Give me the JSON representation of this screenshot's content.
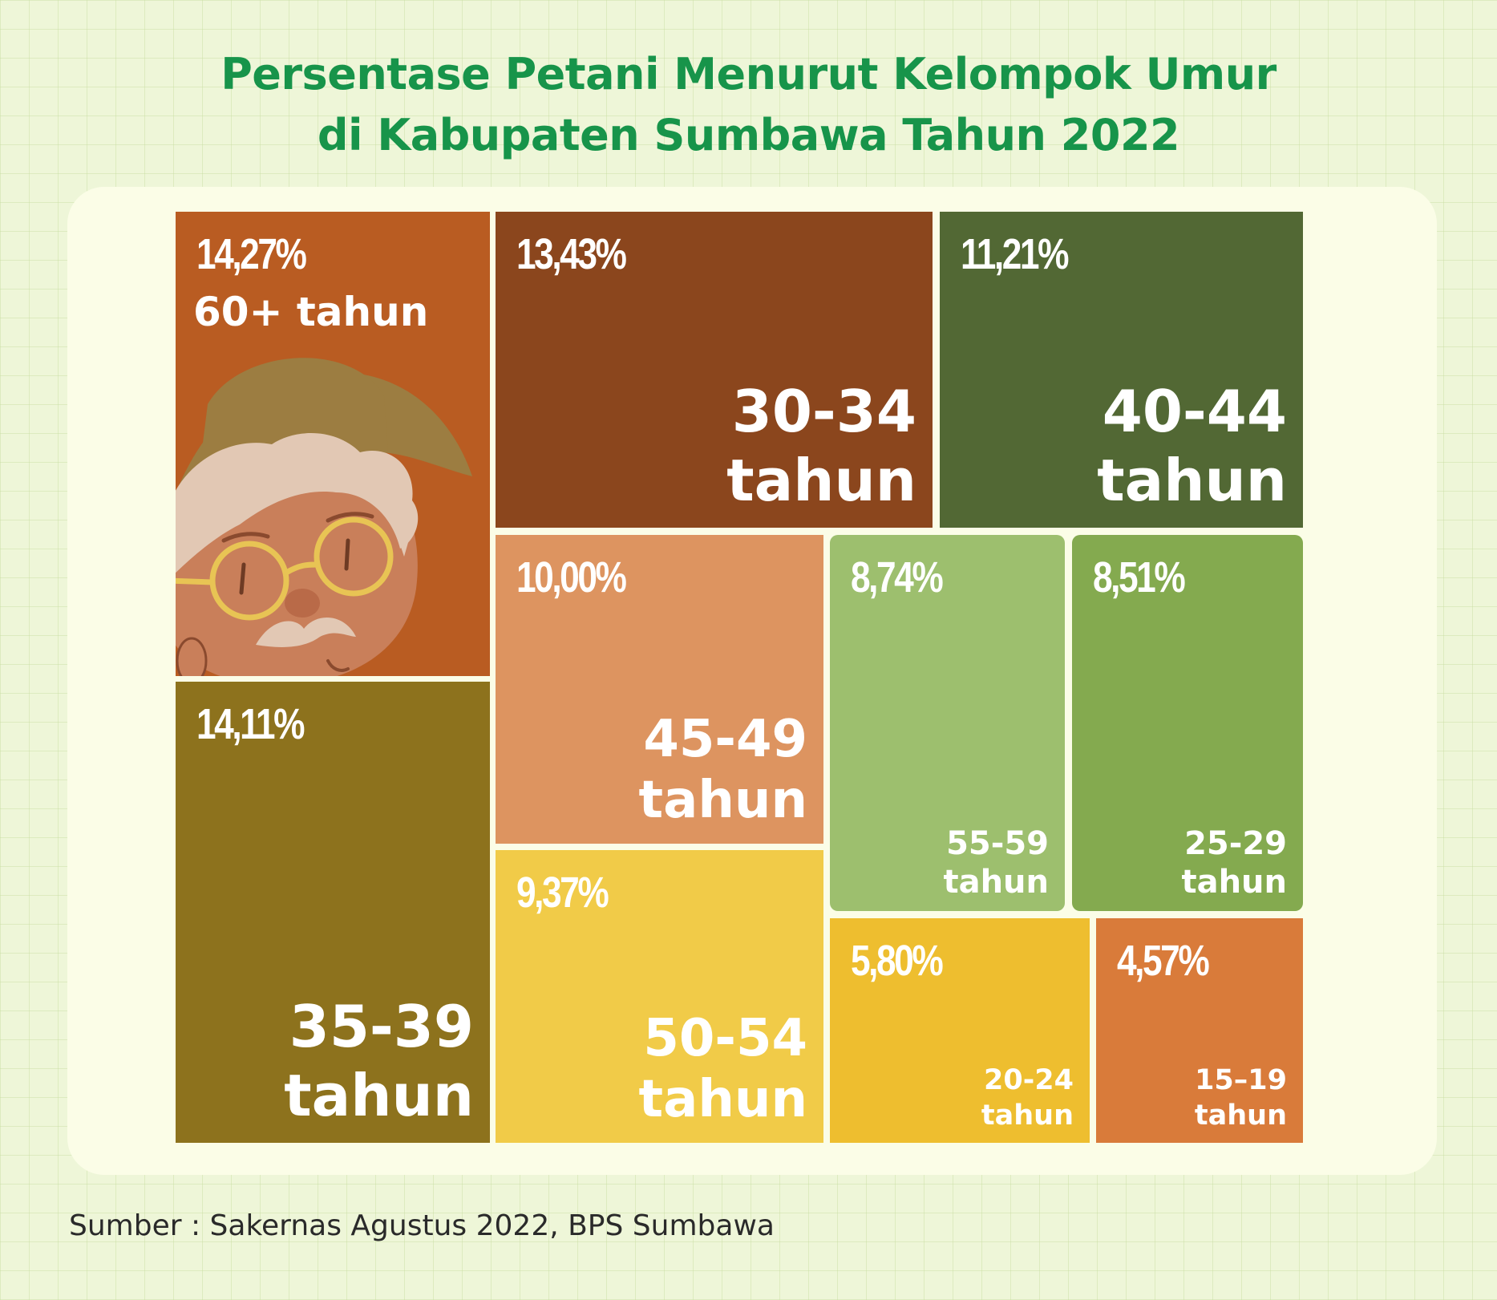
{
  "title": {
    "line1": "Persentase Petani Menurut Kelompok Umur",
    "line2": "di Kabupaten Sumbawa Tahun 2022"
  },
  "source": "Sumber : Sakernas Agustus 2022, BPS Sumbawa",
  "chart_data": {
    "type": "treemap",
    "title": "Persentase Petani Menurut Kelompok Umur di Kabupaten Sumbawa Tahun 2022",
    "unit": "%",
    "items": [
      {
        "category": "60+",
        "label_line1": "60+ tahun",
        "label_line2": "",
        "value_label": "14,27%",
        "value": 14.27,
        "color": "#b95c22"
      },
      {
        "category": "35-39",
        "label_line1": "35-39",
        "label_line2": "tahun",
        "value_label": "14,11%",
        "value": 14.11,
        "color": "#8d721d"
      },
      {
        "category": "30-34",
        "label_line1": "30-34",
        "label_line2": "tahun",
        "value_label": "13,43%",
        "value": 13.43,
        "color": "#8b461d"
      },
      {
        "category": "40-44",
        "label_line1": "40-44",
        "label_line2": "tahun",
        "value_label": "11,21%",
        "value": 11.21,
        "color": "#526834"
      },
      {
        "category": "45-49",
        "label_line1": "45-49",
        "label_line2": "tahun",
        "value_label": "10,00%",
        "value": 10.0,
        "color": "#dd9460"
      },
      {
        "category": "50-54",
        "label_line1": "50-54",
        "label_line2": "tahun",
        "value_label": "9,37%",
        "value": 9.37,
        "color": "#f1cb48"
      },
      {
        "category": "55-59",
        "label_line1": "55-59",
        "label_line2": "tahun",
        "value_label": "8,74%",
        "value": 8.74,
        "color": "#9dbf6e"
      },
      {
        "category": "25-29",
        "label_line1": "25-29",
        "label_line2": "tahun",
        "value_label": "8,51%",
        "value": 8.51,
        "color": "#84aa4f"
      },
      {
        "category": "20-24",
        "label_line1": "20-24",
        "label_line2": "tahun",
        "value_label": "5,80%",
        "value": 5.8,
        "color": "#eebe2f"
      },
      {
        "category": "15-19",
        "label_line1": "15–19",
        "label_line2": "tahun",
        "value_label": "4,57%",
        "value": 4.57,
        "color": "#d97b3a"
      }
    ]
  }
}
